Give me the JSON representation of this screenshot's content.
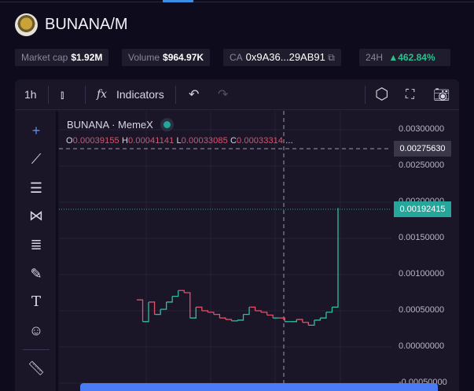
{
  "header": {
    "pair": "BUNANA/M"
  },
  "stats": [
    {
      "label": "Market cap",
      "value": "$1.92M"
    },
    {
      "label": "Volume",
      "value": "$964.97K"
    },
    {
      "label": "CA",
      "value": "0x9A36...29AB91"
    },
    {
      "label": "24H",
      "value": "▲462.84%"
    }
  ],
  "toolbar": {
    "interval": "1h",
    "indicators": "Indicators"
  },
  "chart": {
    "symbol": "BUNANA · MemeX",
    "ohlc": {
      "o_label": "O",
      "o": "0.00039155",
      "h_label": "H",
      "h": "0.00041141",
      "l_label": "L",
      "l": "0.00033085",
      "c_label": "C",
      "c": "0.00033314",
      "more": "..."
    },
    "crosshair_price": "0.00275630",
    "last_price": "0.00192415",
    "colors": {
      "up": "#2fbfa0",
      "down": "#e0516a",
      "accent": "#26a69a"
    }
  },
  "chart_data": {
    "type": "line",
    "y_ticks": [
      "0.00300000",
      "0.00250000",
      "0.00200000",
      "0.00150000",
      "0.00100000",
      "0.00050000",
      "0.00000000",
      "-0.00050000"
    ],
    "ylim": [
      -0.0005,
      0.003
    ],
    "grid": true,
    "values": [
      0.00065,
      0.00035,
      0.00062,
      0.00045,
      0.00052,
      0.00062,
      0.0007,
      0.00078,
      0.00075,
      0.0004,
      0.00055,
      0.0005,
      0.00048,
      0.00045,
      0.0004,
      0.00038,
      0.00036,
      0.00037,
      0.00045,
      0.00055,
      0.0005,
      0.00048,
      0.00044,
      0.0004,
      0.0004,
      0.00035,
      0.00035,
      0.00038,
      0.00034,
      0.0003,
      0.00037,
      0.0004,
      0.00048,
      0.00055,
      0.00192
    ]
  }
}
